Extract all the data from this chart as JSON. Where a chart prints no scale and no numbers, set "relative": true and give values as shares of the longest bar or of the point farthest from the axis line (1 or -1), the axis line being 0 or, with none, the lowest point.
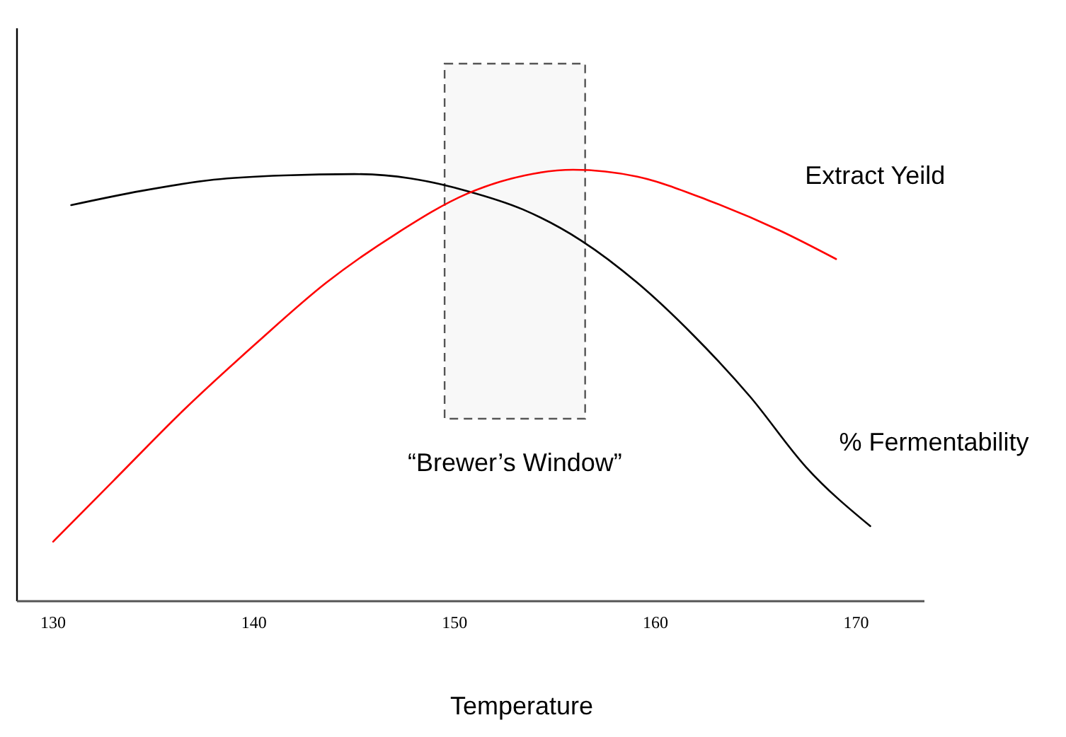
{
  "chart_data": {
    "type": "line",
    "xlabel": "Temperature",
    "relative": true,
    "xlim": [
      128.2,
      173.4
    ],
    "xticks": [
      130,
      140,
      150,
      160,
      170
    ],
    "grid": false,
    "legend": false,
    "marker": "none",
    "line_style": "solid",
    "series": [
      {
        "name": "% Fermentability",
        "color": "#000000",
        "x": [
          130.9,
          134.4,
          138,
          141.5,
          145,
          147.8,
          150.6,
          153.4,
          156.3,
          159.1,
          161.9,
          164.7,
          167.5,
          170.7
        ],
        "values": [
          0.918,
          0.951,
          0.977,
          0.987,
          0.99,
          0.98,
          0.951,
          0.908,
          0.836,
          0.738,
          0.616,
          0.475,
          0.311,
          0.174
        ]
      },
      {
        "name": "Extract Yeild",
        "color": "#ff0000",
        "x": [
          130,
          133,
          136.5,
          140.1,
          143.6,
          147.1,
          150.6,
          153.5,
          155.9,
          159.1,
          162.7,
          166.2,
          169
        ],
        "values": [
          0.138,
          0.279,
          0.443,
          0.597,
          0.738,
          0.852,
          0.944,
          0.987,
          1,
          0.984,
          0.928,
          0.859,
          0.793
        ]
      }
    ],
    "bands": [
      {
        "axis": "x",
        "from": 149.5,
        "to": 156.5,
        "label": "“Brewer’s Window”",
        "color": "#555555"
      }
    ]
  }
}
